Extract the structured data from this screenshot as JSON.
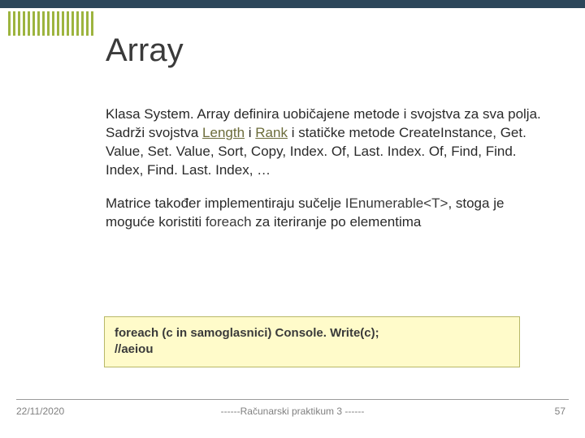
{
  "colors": {
    "topbar": "#2c465a",
    "stripe": "#9db43f",
    "title": "#3a3a3a",
    "body_text": "#2a2a2a",
    "underline": "#6b6b3a",
    "highlight": "#3a3a3a",
    "code_bg": "#fffbca",
    "code_border": "#b8b868",
    "code_text": "#3a3a3a",
    "hr": "#9a9a9a",
    "footer_text": "#808080"
  },
  "sizes": {
    "title_fontsize": 40,
    "body_fontsize": 17,
    "code_fontsize": 15,
    "footer_fontsize": 12,
    "stripe_count": 18
  },
  "title": "Array",
  "para1": {
    "t1": "Klasa System. Array definira uobičajene metode i svojstva za sva polja.",
    "t2a": "Sadrži svojstva ",
    "u_length": "Length",
    "t2b": " i ",
    "u_rank": "Rank",
    "t2c": " i statičke metode CreateInstance, Get. Value, Set. Value, Sort, Copy, Index. Of, Last. Index. Of, Find, Find. Index, Find. Last. Index, …"
  },
  "para2": {
    "t1a": "Matrice također implementiraju sučelje ",
    "i_enum": "IEnumerable<T>",
    "t1b": ", stoga je moguće koristiti ",
    "i_foreach": "foreach",
    "t1c": " za iteriranje po elementima"
  },
  "code": {
    "line1": "foreach (c in samoglasnici)  Console. Write(c);",
    "line2": "//aeiou"
  },
  "footer": {
    "date": "22/11/2020",
    "center": "------Računarski praktikum 3 ------",
    "page": "57"
  }
}
